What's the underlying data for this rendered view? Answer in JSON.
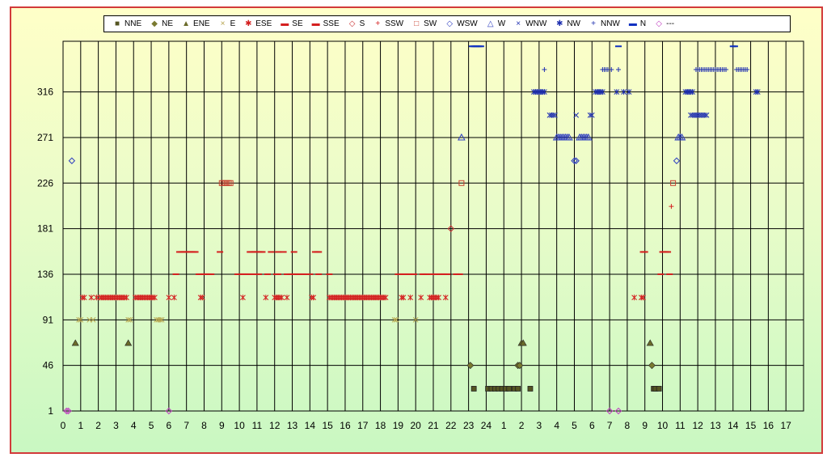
{
  "chart_data": {
    "type": "scatter",
    "title": "",
    "xlabel": "",
    "ylabel": "",
    "ylim": [
      1,
      366
    ],
    "y_ticks": [
      "1",
      "46",
      "91",
      "136",
      "181",
      "226",
      "271",
      "316"
    ],
    "x_ticks": [
      "0",
      "1",
      "2",
      "3",
      "4",
      "5",
      "6",
      "7",
      "8",
      "9",
      "10",
      "11",
      "12",
      "13",
      "14",
      "15",
      "16",
      "17",
      "18",
      "19",
      "20",
      "21",
      "22",
      "23",
      "24",
      "1",
      "2",
      "3",
      "4",
      "5",
      "6",
      "7",
      "8",
      "9",
      "10",
      "11",
      "12",
      "13",
      "14",
      "15",
      "16",
      "17"
    ],
    "grid": "on",
    "legend_position": "top",
    "series": [
      {
        "name": "NNE",
        "marker": "square-filled",
        "color": "#555522",
        "y": 23,
        "x": [
          23.3,
          24.1,
          24.3,
          24.5,
          24.7,
          24.9,
          25.1,
          25.3,
          25.6,
          25.8,
          26.5,
          33.5,
          33.6,
          33.8
        ]
      },
      {
        "name": "NE",
        "marker": "diamond-filled",
        "color": "#7a7a30",
        "y": 46,
        "x": [
          23.1,
          25.8,
          25.9,
          33.4
        ]
      },
      {
        "name": "ENE",
        "marker": "triangle-filled",
        "color": "#6b6b2a",
        "y": 68,
        "x": [
          0.7,
          3.7,
          26.0,
          26.1,
          33.3
        ]
      },
      {
        "name": "E",
        "marker": "x",
        "color": "#b5a24a",
        "y": 91,
        "x": [
          0.9,
          1.0,
          1.5,
          1.7,
          3.7,
          3.8,
          5.3,
          5.4,
          5.5,
          5.6,
          18.8,
          18.9,
          20.0
        ]
      },
      {
        "name": "ESE",
        "marker": "asterisk",
        "color": "#d42020",
        "y": 113,
        "x": [
          1.1,
          1.2,
          1.6,
          1.9,
          2.1,
          2.2,
          2.3,
          2.4,
          2.5,
          2.6,
          2.7,
          2.8,
          2.9,
          3.0,
          3.1,
          3.2,
          3.3,
          3.4,
          3.5,
          3.6,
          4.1,
          4.2,
          4.3,
          4.4,
          4.5,
          4.6,
          4.7,
          4.8,
          4.9,
          5.0,
          5.1,
          5.2,
          6.0,
          6.3,
          7.8,
          7.9,
          10.2,
          11.5,
          12.0,
          12.1,
          12.2,
          12.3,
          12.4,
          12.7,
          14.1,
          14.2,
          15.1,
          15.2,
          15.3,
          15.4,
          15.5,
          15.6,
          15.7,
          15.8,
          15.9,
          16.0,
          16.1,
          16.2,
          16.3,
          16.4,
          16.5,
          16.6,
          16.7,
          16.8,
          16.9,
          17.0,
          17.1,
          17.2,
          17.3,
          17.4,
          17.5,
          17.6,
          17.7,
          17.8,
          17.9,
          18.0,
          18.1,
          18.2,
          18.3,
          19.2,
          19.3,
          19.7,
          20.3,
          20.8,
          20.9,
          21.0,
          21.1,
          21.2,
          21.3,
          21.7,
          32.4,
          32.8,
          32.9
        ]
      },
      {
        "name": "SE",
        "marker": "dash",
        "color": "#d42020",
        "y": 136,
        "x": [
          6.4,
          7.7,
          7.8,
          7.9,
          8.0,
          8.1,
          8.2,
          8.3,
          8.4,
          9.9,
          10.0,
          10.1,
          10.2,
          10.3,
          10.4,
          10.5,
          10.6,
          10.9,
          11.1,
          11.6,
          12.1,
          12.2,
          12.7,
          12.9,
          13.0,
          13.1,
          13.2,
          13.3,
          13.4,
          13.6,
          13.7,
          14.0,
          14.5,
          15.1,
          19.0,
          19.1,
          19.3,
          19.4,
          19.6,
          19.7,
          19.9,
          20.4,
          20.5,
          20.6,
          20.9,
          21.1,
          21.3,
          21.4,
          21.5,
          21.6,
          21.7,
          21.8,
          22.3,
          22.4,
          22.5,
          33.9,
          34.4
        ]
      },
      {
        "name": "SSE",
        "marker": "dash",
        "color": "#d42020",
        "y": 158,
        "x": [
          6.6,
          6.7,
          6.8,
          6.9,
          7.0,
          7.1,
          7.2,
          7.3,
          7.4,
          7.5,
          8.9,
          10.6,
          10.7,
          10.8,
          10.9,
          11.0,
          11.1,
          11.2,
          11.3,
          11.8,
          12.2,
          12.5,
          13.1,
          14.3,
          14.4,
          14.5,
          32.9,
          33.0,
          34.0,
          34.1,
          34.2,
          34.3
        ]
      },
      {
        "name": "S",
        "marker": "diamond-open",
        "color": "#c83030",
        "y": 181,
        "x": [
          22.0
        ]
      },
      {
        "name": "SSW",
        "marker": "plus",
        "color": "#d42020",
        "y": 203,
        "x": [
          34.5
        ]
      },
      {
        "name": "SW",
        "marker": "square-open",
        "color": "#c84030",
        "y": 226,
        "x": [
          9.0,
          9.1,
          9.2,
          9.3,
          9.4,
          9.5,
          22.6,
          34.6
        ]
      },
      {
        "name": "WSW",
        "marker": "diamond-open",
        "color": "#3040c0",
        "y": 248,
        "x": [
          0.5,
          29.0,
          29.1,
          34.8
        ]
      },
      {
        "name": "W",
        "marker": "triangle-open",
        "color": "#3040c0",
        "y": 271,
        "x": [
          22.6,
          28.0,
          28.1,
          28.2,
          28.3,
          28.4,
          28.5,
          28.6,
          28.7,
          29.3,
          29.4,
          29.5,
          29.6,
          29.7,
          29.8,
          34.9,
          35.0,
          35.1
        ]
      },
      {
        "name": "WNW",
        "marker": "x",
        "color": "#2030b0",
        "y": 293,
        "x": [
          27.6,
          27.7,
          27.8,
          27.9,
          29.1,
          29.9,
          30.0,
          35.6,
          35.7,
          35.8,
          35.9,
          36.0,
          36.1,
          36.2,
          36.3,
          36.4,
          36.5
        ]
      },
      {
        "name": "NW",
        "marker": "asterisk",
        "color": "#2030b0",
        "y": 316,
        "x": [
          26.7,
          26.8,
          26.9,
          27.0,
          27.1,
          27.2,
          27.3,
          30.2,
          30.3,
          30.4,
          30.5,
          30.6,
          31.4,
          31.8,
          32.1,
          35.3,
          35.4,
          35.5,
          35.6,
          35.7,
          39.3,
          39.4
        ]
      },
      {
        "name": "NNW",
        "marker": "plus",
        "color": "#2030b0",
        "y": 338,
        "x": [
          27.3,
          30.6,
          30.7,
          30.8,
          30.9,
          31.1,
          31.5,
          35.9,
          36.0,
          36.1,
          36.2,
          36.3,
          36.4,
          36.5,
          36.6,
          36.7,
          36.8,
          36.9,
          37.0,
          37.1,
          37.2,
          37.3,
          37.4,
          37.5,
          37.6,
          38.2,
          38.3,
          38.4,
          38.5,
          38.6,
          38.7,
          38.8
        ]
      },
      {
        "name": "N",
        "marker": "dash",
        "color": "#1030c0",
        "y": 361,
        "x": [
          23.2,
          23.3,
          23.4,
          23.5,
          23.6,
          23.7,
          31.5,
          38.0,
          38.1
        ]
      },
      {
        "name": "---",
        "marker": "diamond-open",
        "color": "#c040c0",
        "y": 1,
        "x": [
          0.2,
          0.3,
          6.0,
          31.0,
          31.5
        ]
      }
    ]
  }
}
